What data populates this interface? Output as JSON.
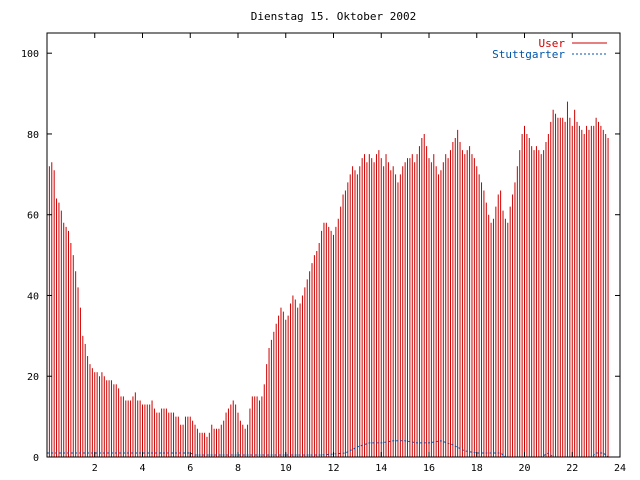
{
  "chart_data": {
    "type": "bar",
    "title": "Dienstag 15. Oktober 2002",
    "xlabel": "",
    "ylabel": "",
    "xlim": [
      0,
      24
    ],
    "ylim": [
      0,
      105
    ],
    "x_ticks": [
      2,
      4,
      6,
      8,
      10,
      12,
      14,
      16,
      18,
      20,
      22,
      24
    ],
    "y_ticks": [
      0,
      20,
      40,
      60,
      80,
      100
    ],
    "grid": false,
    "legend_position": "top-right",
    "sample_interval_hours": 0.1,
    "series": [
      {
        "name": "User",
        "style": "impulses",
        "color": "#cc0000",
        "values": [
          74,
          72,
          73,
          71,
          64,
          63,
          61,
          58,
          57,
          56,
          53,
          50,
          46,
          42,
          37,
          30,
          28,
          25,
          23,
          22,
          21,
          21,
          20,
          21,
          20,
          19,
          19,
          19,
          18,
          18,
          17,
          15,
          15,
          14,
          14,
          14,
          15,
          16,
          14,
          14,
          13,
          13,
          13,
          13,
          14,
          12,
          11,
          11,
          12,
          12,
          12,
          11,
          11,
          11,
          10,
          10,
          8,
          8,
          10,
          10,
          10,
          9,
          8,
          7,
          6,
          6,
          6,
          5,
          6,
          8,
          7,
          7,
          7,
          8,
          9,
          11,
          12,
          13,
          14,
          13,
          11,
          9,
          8,
          7,
          8,
          12,
          15,
          15,
          15,
          14,
          15,
          18,
          23,
          27,
          29,
          31,
          33,
          35,
          37,
          36,
          34,
          35,
          38,
          40,
          39,
          37,
          38,
          40,
          42,
          44,
          46,
          48,
          50,
          51,
          53,
          56,
          58,
          58,
          57,
          56,
          55,
          57,
          59,
          62,
          65,
          66,
          68,
          70,
          72,
          71,
          70,
          72,
          74,
          75,
          73,
          75,
          74,
          73,
          75,
          76,
          74,
          72,
          75,
          73,
          71,
          72,
          70,
          68,
          70,
          72,
          73,
          74,
          74,
          75,
          73,
          75,
          77,
          79,
          80,
          77,
          74,
          73,
          75,
          72,
          70,
          71,
          73,
          75,
          74,
          76,
          78,
          79,
          81,
          78,
          76,
          75,
          76,
          77,
          75,
          74,
          72,
          70,
          68,
          66,
          63,
          60,
          58,
          59,
          62,
          65,
          66,
          61,
          59,
          58,
          62,
          65,
          68,
          72,
          76,
          80,
          82,
          80,
          79,
          77,
          76,
          77,
          76,
          75,
          76,
          78,
          80,
          83,
          86,
          85,
          84,
          84,
          84,
          83,
          88,
          84,
          82,
          86,
          83,
          82,
          81,
          80,
          82,
          81,
          82,
          82,
          84,
          83,
          82,
          81,
          80,
          79
        ]
      },
      {
        "name": "Stuttgarter",
        "style": "lines",
        "color": "#0055aa",
        "points": [
          [
            0,
            1
          ],
          [
            6,
            1
          ],
          [
            6.2,
            0.5
          ],
          [
            11.5,
            0.5
          ],
          [
            12.5,
            1
          ],
          [
            13,
            2.5
          ],
          [
            13.5,
            3.5
          ],
          [
            14,
            3.5
          ],
          [
            14.5,
            4
          ],
          [
            15,
            4
          ],
          [
            15.5,
            3.5
          ],
          [
            16,
            3.5
          ],
          [
            16.5,
            4
          ],
          [
            17,
            3
          ],
          [
            17.5,
            1.5
          ],
          [
            18,
            1
          ],
          [
            19,
            1
          ],
          [
            19.2,
            0
          ],
          [
            20.7,
            0
          ],
          [
            21,
            1
          ],
          [
            21.2,
            0
          ],
          [
            22.8,
            0
          ],
          [
            23,
            1
          ],
          [
            23.3,
            1
          ],
          [
            23.5,
            0
          ],
          [
            24,
            0
          ]
        ]
      }
    ]
  }
}
